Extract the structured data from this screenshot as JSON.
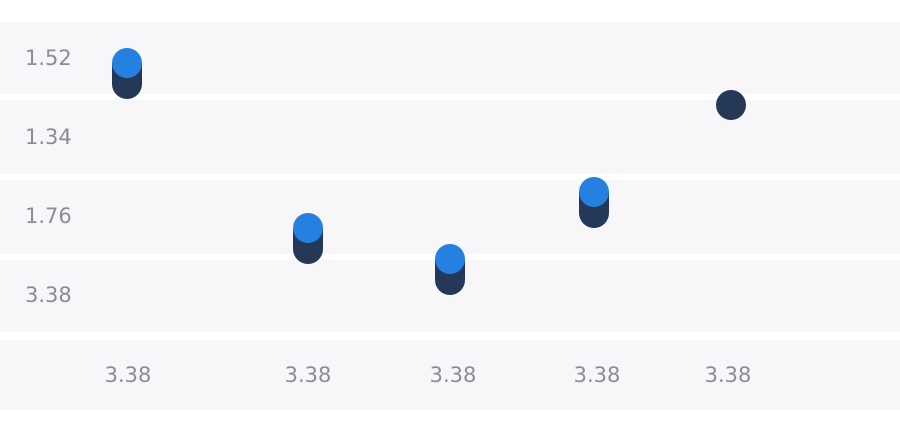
{
  "y_labels": [
    "1.52",
    "1.34",
    "1.76",
    "3.38"
  ],
  "x_labels": [
    "3.38",
    "3.38",
    "3.38",
    "3.38",
    "3.38"
  ]
}
